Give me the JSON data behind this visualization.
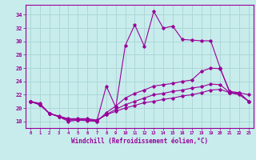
{
  "xlabel": "Windchill (Refroidissement éolien,°C)",
  "background_color": "#c8ecec",
  "grid_color": "#b0d8d8",
  "line_color": "#990099",
  "x_ticks": [
    0,
    1,
    2,
    3,
    4,
    5,
    6,
    7,
    8,
    9,
    10,
    11,
    12,
    13,
    14,
    15,
    16,
    17,
    18,
    19,
    20,
    21,
    22,
    23
  ],
  "y_ticks": [
    18,
    20,
    22,
    24,
    26,
    28,
    30,
    32,
    34
  ],
  "ylim": [
    17.0,
    35.5
  ],
  "xlim": [
    -0.5,
    23.5
  ],
  "curve1_x": [
    0,
    1,
    2,
    3,
    4,
    5,
    6,
    7,
    8,
    9,
    10,
    11,
    12,
    13,
    14,
    15,
    16,
    17,
    18,
    19,
    20,
    21,
    22,
    23
  ],
  "curve1_y": [
    21.0,
    20.7,
    19.2,
    18.7,
    18.0,
    18.2,
    18.1,
    18.0,
    23.3,
    20.1,
    29.4,
    32.5,
    29.3,
    34.5,
    32.0,
    32.3,
    30.3,
    30.2,
    30.1,
    30.1,
    26.0,
    22.3,
    22.3,
    22.0
  ],
  "curve2_x": [
    0,
    1,
    2,
    3,
    4,
    5,
    6,
    7,
    8,
    9,
    10,
    11,
    12,
    13,
    14,
    15,
    16,
    17,
    18,
    19,
    20,
    21,
    22,
    23
  ],
  "curve2_y": [
    21.0,
    20.5,
    19.2,
    18.7,
    18.2,
    18.2,
    18.2,
    18.0,
    19.3,
    20.3,
    21.5,
    22.2,
    22.7,
    23.3,
    23.5,
    23.7,
    24.0,
    24.2,
    25.5,
    26.0,
    25.9,
    22.5,
    22.3,
    21.0
  ],
  "curve3_x": [
    0,
    1,
    2,
    3,
    4,
    5,
    6,
    7,
    8,
    9,
    10,
    11,
    12,
    13,
    14,
    15,
    16,
    17,
    18,
    19,
    20,
    21,
    22,
    23
  ],
  "curve3_y": [
    21.0,
    20.5,
    19.2,
    18.7,
    18.3,
    18.3,
    18.3,
    18.1,
    19.0,
    19.8,
    20.5,
    21.0,
    21.5,
    22.0,
    22.2,
    22.5,
    22.7,
    23.0,
    23.2,
    23.6,
    23.5,
    22.3,
    22.2,
    21.0
  ],
  "curve4_x": [
    0,
    1,
    2,
    3,
    4,
    5,
    6,
    7,
    8,
    9,
    10,
    11,
    12,
    13,
    14,
    15,
    16,
    17,
    18,
    19,
    20,
    21,
    22,
    23
  ],
  "curve4_y": [
    21.0,
    20.5,
    19.2,
    18.8,
    18.4,
    18.4,
    18.4,
    18.2,
    19.0,
    19.5,
    20.0,
    20.4,
    20.8,
    21.0,
    21.3,
    21.5,
    21.8,
    22.0,
    22.3,
    22.7,
    22.8,
    22.3,
    22.0,
    21.0
  ]
}
